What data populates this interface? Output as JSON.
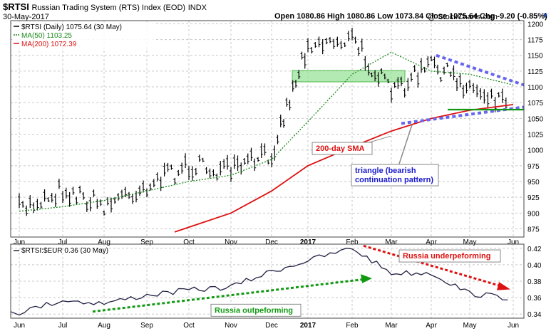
{
  "header": {
    "symbol": "$RTSI",
    "name": "Russian Trading System (RTS) Index (EOD)",
    "exchange": "INDX",
    "date": "30-May-2017",
    "watermark": "@ StockCharts.com",
    "ohlc": "Open 1080.86  High 1080.86  Low 1073.84  Close 1075.64  Chg -9.20 (-0.85%)"
  },
  "chart_data": [
    {
      "type": "line",
      "subtype": "ohlc-bars",
      "title": "$RTSI (Daily) 1075.64 (30 May)",
      "ylim": [
        862,
        1205
      ],
      "y_ticks": [
        875,
        900,
        925,
        950,
        975,
        1000,
        1025,
        1050,
        1075,
        1100,
        1125,
        1150,
        1175,
        1200
      ],
      "x_ticks": [
        "Jun",
        "Jul",
        "Aug",
        "Sep",
        "Oct",
        "Nov",
        "Dec",
        "2017",
        "Feb",
        "Mar",
        "Apr",
        "May",
        "Jun"
      ],
      "legend": [
        {
          "label": "$RTSI (Daily) 1075.64 (30 May)",
          "color": "#000000"
        },
        {
          "label": "MA(50) 1103.25",
          "color": "#1a8a1a"
        },
        {
          "label": "MA(200) 1072.39",
          "color": "#dd1111"
        }
      ],
      "series": [
        {
          "name": "$RTSI (Daily)",
          "x": [
            "Jun",
            "Jul",
            "Aug",
            "Sep",
            "Oct",
            "Nov",
            "Dec",
            "2017",
            "Feb",
            "Mar",
            "Apr",
            "May",
            "Jun"
          ],
          "values": [
            905,
            938,
            912,
            945,
            975,
            965,
            995,
            1170,
            1175,
            1090,
            1135,
            1100,
            1075
          ]
        },
        {
          "name": "MA(50)",
          "x": [
            "Jun",
            "Jul",
            "Aug",
            "Sep",
            "Oct",
            "Nov",
            "Dec",
            "2017",
            "Feb",
            "Mar",
            "Apr",
            "May",
            "Jun"
          ],
          "values": [
            903,
            910,
            920,
            935,
            950,
            960,
            985,
            1045,
            1120,
            1155,
            1125,
            1120,
            1103
          ]
        },
        {
          "name": "MA(200)",
          "x": [
            "Oct",
            "Nov",
            "Dec",
            "2017",
            "Feb",
            "Mar",
            "Apr",
            "May",
            "Jun"
          ],
          "values": [
            870,
            900,
            935,
            975,
            1005,
            1030,
            1050,
            1063,
            1072
          ]
        }
      ],
      "annotations": [
        {
          "text": "200-day SMA",
          "color": "#dd1111"
        },
        {
          "text": "triangle (bearish continuation pattern)",
          "color": "#1a1acc"
        }
      ]
    },
    {
      "type": "line",
      "title": "$RTSI:$EUR 0.36 (30 May)",
      "ylim": [
        0.335,
        0.425
      ],
      "y_ticks": [
        0.34,
        0.36,
        0.38,
        0.4,
        0.42
      ],
      "x_ticks": [
        "Jun",
        "Jul",
        "Aug",
        "Sep",
        "Oct",
        "Nov",
        "Dec",
        "2017",
        "Feb",
        "Mar",
        "Apr",
        "May",
        "Jun"
      ],
      "series": [
        {
          "name": "$RTSI:$EUR",
          "x": [
            "Jun",
            "Jul",
            "Aug",
            "Sep",
            "Oct",
            "Nov",
            "Dec",
            "2017",
            "Feb",
            "Mar",
            "Apr",
            "May",
            "Jun"
          ],
          "values": [
            0.342,
            0.357,
            0.353,
            0.363,
            0.369,
            0.373,
            0.392,
            0.405,
            0.42,
            0.39,
            0.39,
            0.365,
            0.359
          ]
        }
      ],
      "annotations": [
        {
          "text": "Russia outpeforming",
          "color": "#119911"
        },
        {
          "text": "Russia underpeforming",
          "color": "#dd1111"
        }
      ]
    }
  ]
}
